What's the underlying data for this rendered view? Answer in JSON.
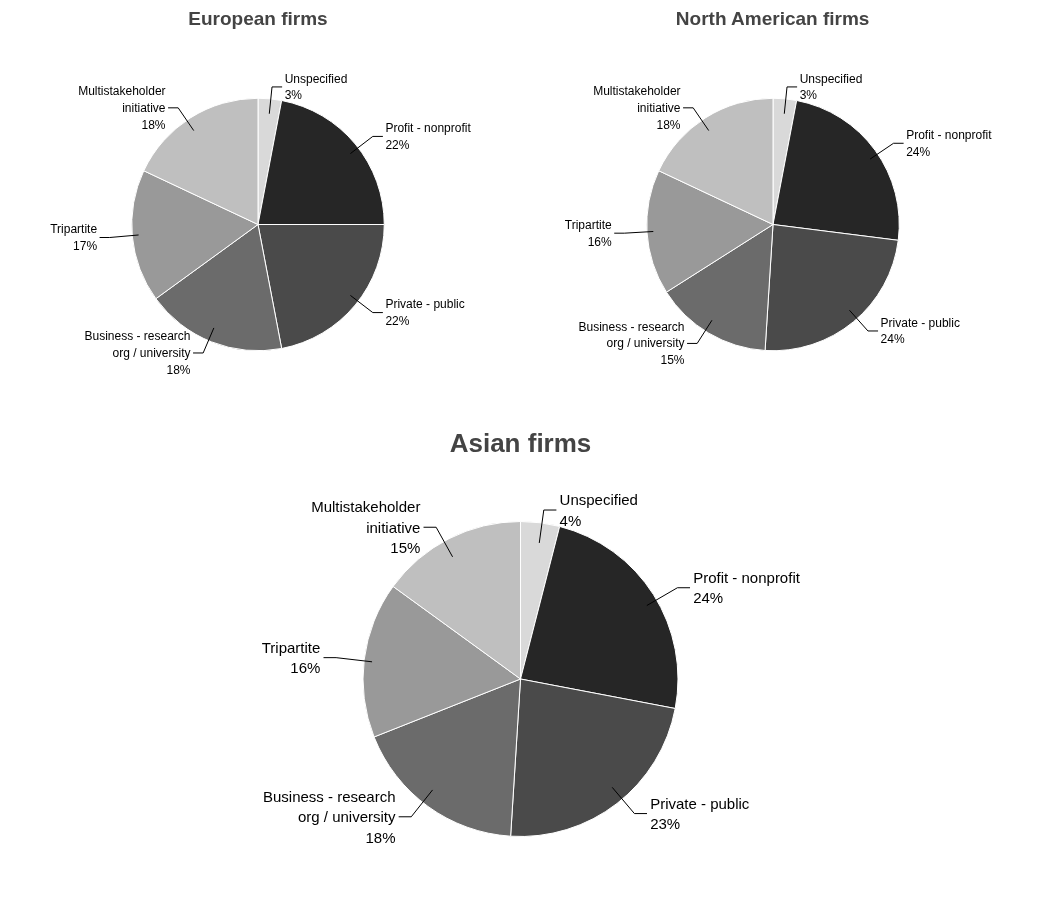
{
  "chart_data": [
    {
      "type": "pie",
      "title": "European firms",
      "categories": [
        "Unspecified",
        "Profit - nonprofit",
        "Private - public",
        "Business - research org / university",
        "Tripartite",
        "Multistakeholder initiative"
      ],
      "values": [
        3,
        22,
        22,
        18,
        17,
        18
      ],
      "colors": [
        "#d9d9d9",
        "#262626",
        "#4a4a4a",
        "#6b6b6b",
        "#999999",
        "#bfbfbf"
      ],
      "value_labels": [
        "3%",
        "22%",
        "22%",
        "18%",
        "17%",
        "18%"
      ]
    },
    {
      "type": "pie",
      "title": "North American firms",
      "categories": [
        "Unspecified",
        "Profit - nonprofit",
        "Private - public",
        "Business - research org / university",
        "Tripartite",
        "Multistakeholder initiative"
      ],
      "values": [
        3,
        24,
        24,
        15,
        16,
        18
      ],
      "colors": [
        "#d9d9d9",
        "#262626",
        "#4a4a4a",
        "#6b6b6b",
        "#999999",
        "#bfbfbf"
      ],
      "value_labels": [
        "3%",
        "24%",
        "24%",
        "15%",
        "16%",
        "18%"
      ]
    },
    {
      "type": "pie",
      "title": "Asian firms",
      "categories": [
        "Unspecified",
        "Profit - nonprofit",
        "Private - public",
        "Business - research org / university",
        "Tripartite",
        "Multistakeholder initiative"
      ],
      "values": [
        4,
        24,
        23,
        18,
        16,
        15
      ],
      "colors": [
        "#d9d9d9",
        "#262626",
        "#4a4a4a",
        "#6b6b6b",
        "#999999",
        "#bfbfbf"
      ],
      "value_labels": [
        "4%",
        "24%",
        "23%",
        "18%",
        "16%",
        "15%"
      ]
    }
  ]
}
